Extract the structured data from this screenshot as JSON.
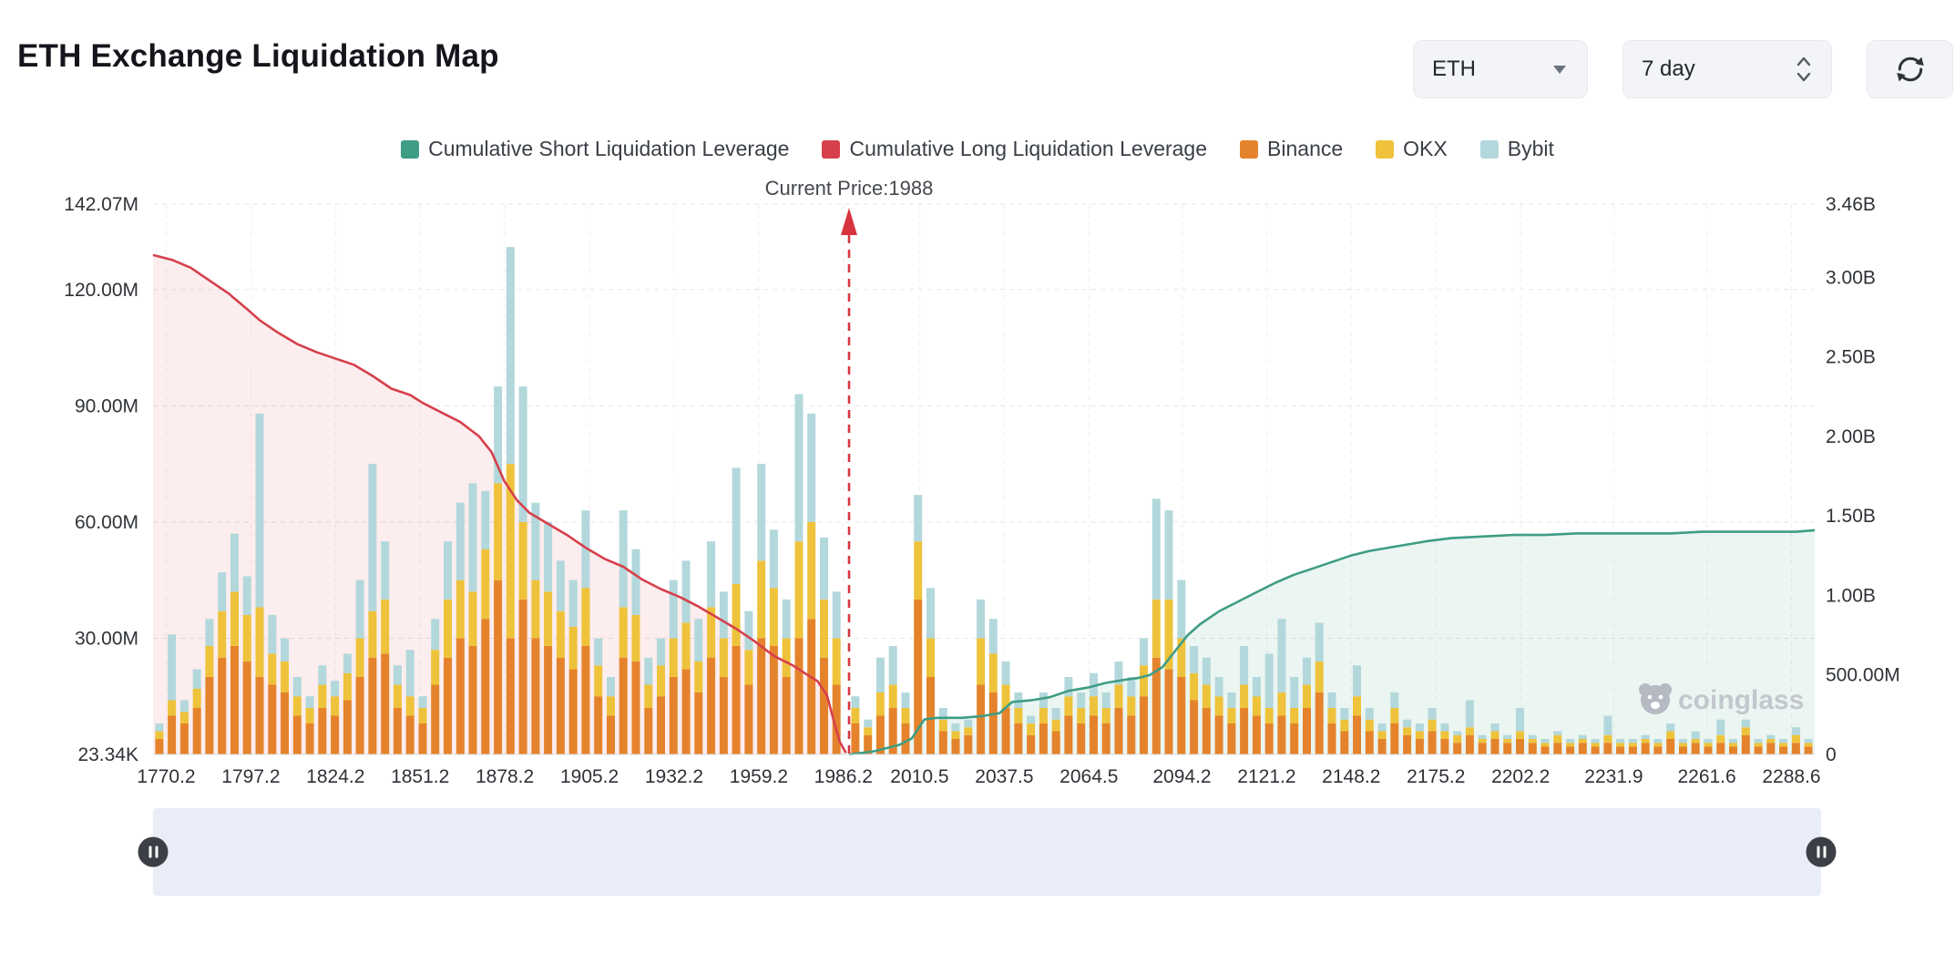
{
  "header": {
    "title": "ETH Exchange Liquidation Map",
    "symbol_select": {
      "value": "ETH"
    },
    "range_select": {
      "value": "7 day"
    }
  },
  "legend": [
    {
      "name": "short",
      "label": "Cumulative Short Liquidation Leverage",
      "color": "#3e9d84"
    },
    {
      "name": "long",
      "label": "Cumulative Long Liquidation Leverage",
      "color": "#d6404b"
    },
    {
      "name": "binance",
      "label": "Binance",
      "color": "#e5832c"
    },
    {
      "name": "okx",
      "label": "OKX",
      "color": "#eec33b"
    },
    {
      "name": "bybit",
      "label": "Bybit",
      "color": "#b3d8dc"
    }
  ],
  "watermark": "coinglass",
  "chart_data": {
    "type": "bar+line",
    "title": "ETH Exchange Liquidation Map",
    "current_price_annotation": {
      "label": "Current Price:1988",
      "price": 1988
    },
    "x_domain": [
      1766,
      2296
    ],
    "x_ticks": [
      1770.2,
      1797.2,
      1824.2,
      1851.2,
      1878.2,
      1905.2,
      1932.2,
      1959.2,
      1986.2,
      2010.5,
      2037.5,
      2064.5,
      2094.2,
      2121.2,
      2148.2,
      2175.2,
      2202.2,
      2231.9,
      2261.6,
      2288.6
    ],
    "left_axis": {
      "unit": "M",
      "max": 142.07,
      "ticks": [
        {
          "label": "142.07M",
          "value": 142.07
        },
        {
          "label": "120.00M",
          "value": 120
        },
        {
          "label": "90.00M",
          "value": 90
        },
        {
          "label": "60.00M",
          "value": 60
        },
        {
          "label": "30.00M",
          "value": 30
        },
        {
          "label": "23.34K",
          "value": 0.02334
        }
      ]
    },
    "right_axis": {
      "unit": "B",
      "max": 3.46,
      "ticks": [
        {
          "label": "3.46B",
          "value": 3.46
        },
        {
          "label": "3.00B",
          "value": 3
        },
        {
          "label": "2.50B",
          "value": 2.5
        },
        {
          "label": "2.00B",
          "value": 2
        },
        {
          "label": "1.50B",
          "value": 1.5
        },
        {
          "label": "1.00B",
          "value": 1
        },
        {
          "label": "500.00M",
          "value": 0.5
        },
        {
          "label": "0",
          "value": 0
        }
      ]
    },
    "bar_series_order": [
      "Binance",
      "OKX",
      "Bybit"
    ],
    "bar_colors": {
      "Binance": "#e5832c",
      "OKX": "#eec33b",
      "Bybit": "#b3d8dc"
    },
    "bars_unit": "M",
    "bars": [
      [
        1768,
        4,
        2,
        2
      ],
      [
        1772,
        10,
        4,
        17
      ],
      [
        1776,
        8,
        3,
        3
      ],
      [
        1780,
        12,
        5,
        5
      ],
      [
        1784,
        20,
        8,
        7
      ],
      [
        1788,
        25,
        12,
        10
      ],
      [
        1792,
        28,
        14,
        15
      ],
      [
        1796,
        24,
        12,
        10
      ],
      [
        1800,
        20,
        18,
        50
      ],
      [
        1804,
        18,
        8,
        10
      ],
      [
        1808,
        16,
        8,
        6
      ],
      [
        1812,
        10,
        5,
        5
      ],
      [
        1816,
        8,
        4,
        3
      ],
      [
        1820,
        12,
        6,
        5
      ],
      [
        1824,
        10,
        5,
        4
      ],
      [
        1828,
        14,
        7,
        5
      ],
      [
        1832,
        20,
        10,
        15
      ],
      [
        1836,
        25,
        12,
        38
      ],
      [
        1840,
        26,
        14,
        15
      ],
      [
        1844,
        12,
        6,
        5
      ],
      [
        1848,
        10,
        5,
        12
      ],
      [
        1852,
        8,
        4,
        3
      ],
      [
        1856,
        18,
        9,
        8
      ],
      [
        1860,
        25,
        15,
        15
      ],
      [
        1864,
        30,
        15,
        20
      ],
      [
        1868,
        28,
        14,
        28
      ],
      [
        1872,
        35,
        18,
        15
      ],
      [
        1876,
        45,
        25,
        25
      ],
      [
        1880,
        30,
        45,
        56
      ],
      [
        1884,
        40,
        20,
        35
      ],
      [
        1888,
        30,
        15,
        20
      ],
      [
        1892,
        28,
        14,
        18
      ],
      [
        1896,
        25,
        12,
        13
      ],
      [
        1900,
        22,
        11,
        12
      ],
      [
        1904,
        28,
        15,
        20
      ],
      [
        1908,
        15,
        8,
        7
      ],
      [
        1912,
        10,
        5,
        5
      ],
      [
        1916,
        25,
        13,
        25
      ],
      [
        1920,
        24,
        12,
        17
      ],
      [
        1924,
        12,
        6,
        7
      ],
      [
        1928,
        15,
        8,
        7
      ],
      [
        1932,
        20,
        10,
        15
      ],
      [
        1936,
        22,
        12,
        16
      ],
      [
        1940,
        16,
        8,
        11
      ],
      [
        1944,
        25,
        13,
        17
      ],
      [
        1948,
        20,
        10,
        12
      ],
      [
        1952,
        28,
        16,
        30
      ],
      [
        1956,
        18,
        9,
        10
      ],
      [
        1960,
        30,
        20,
        25
      ],
      [
        1964,
        28,
        15,
        15
      ],
      [
        1968,
        20,
        10,
        10
      ],
      [
        1972,
        30,
        25,
        38
      ],
      [
        1976,
        35,
        25,
        28
      ],
      [
        1980,
        25,
        15,
        16
      ],
      [
        1984,
        18,
        12,
        12
      ],
      [
        1990,
        8,
        4,
        3
      ],
      [
        1994,
        5,
        2,
        2
      ],
      [
        1998,
        10,
        6,
        9
      ],
      [
        2002,
        12,
        6,
        10
      ],
      [
        2006,
        8,
        4,
        4
      ],
      [
        2010,
        40,
        15,
        12
      ],
      [
        2014,
        20,
        10,
        13
      ],
      [
        2018,
        6,
        3,
        3
      ],
      [
        2022,
        4,
        2,
        2
      ],
      [
        2026,
        5,
        2,
        2
      ],
      [
        2030,
        18,
        12,
        10
      ],
      [
        2034,
        16,
        10,
        9
      ],
      [
        2038,
        12,
        6,
        6
      ],
      [
        2042,
        8,
        4,
        4
      ],
      [
        2046,
        5,
        3,
        2
      ],
      [
        2050,
        8,
        4,
        4
      ],
      [
        2054,
        6,
        3,
        3
      ],
      [
        2058,
        10,
        5,
        5
      ],
      [
        2062,
        8,
        4,
        4
      ],
      [
        2066,
        10,
        5,
        6
      ],
      [
        2070,
        8,
        4,
        4
      ],
      [
        2074,
        12,
        6,
        6
      ],
      [
        2078,
        10,
        5,
        5
      ],
      [
        2082,
        15,
        8,
        7
      ],
      [
        2086,
        25,
        15,
        26
      ],
      [
        2090,
        22,
        18,
        23
      ],
      [
        2094,
        20,
        10,
        15
      ],
      [
        2098,
        14,
        7,
        7
      ],
      [
        2102,
        12,
        6,
        7
      ],
      [
        2106,
        10,
        5,
        5
      ],
      [
        2110,
        8,
        4,
        4
      ],
      [
        2114,
        12,
        6,
        10
      ],
      [
        2118,
        10,
        5,
        5
      ],
      [
        2122,
        8,
        4,
        14
      ],
      [
        2126,
        10,
        6,
        19
      ],
      [
        2130,
        8,
        4,
        8
      ],
      [
        2134,
        12,
        6,
        7
      ],
      [
        2138,
        16,
        8,
        10
      ],
      [
        2142,
        8,
        4,
        4
      ],
      [
        2146,
        6,
        3,
        3
      ],
      [
        2150,
        10,
        5,
        8
      ],
      [
        2154,
        6,
        3,
        3
      ],
      [
        2158,
        4,
        2,
        2
      ],
      [
        2162,
        8,
        4,
        4
      ],
      [
        2166,
        5,
        2,
        2
      ],
      [
        2170,
        4,
        2,
        2
      ],
      [
        2174,
        6,
        3,
        3
      ],
      [
        2178,
        4,
        2,
        2
      ],
      [
        2182,
        3,
        2,
        1
      ],
      [
        2186,
        5,
        2,
        7
      ],
      [
        2190,
        3,
        1,
        1
      ],
      [
        2194,
        4,
        2,
        2
      ],
      [
        2198,
        3,
        1,
        1
      ],
      [
        2202,
        4,
        2,
        6
      ],
      [
        2206,
        3,
        1,
        1
      ],
      [
        2210,
        2,
        1,
        1
      ],
      [
        2214,
        3,
        2,
        1
      ],
      [
        2218,
        2,
        1,
        1
      ],
      [
        2222,
        3,
        1,
        1
      ],
      [
        2226,
        2,
        1,
        1
      ],
      [
        2230,
        3,
        2,
        5
      ],
      [
        2234,
        2,
        1,
        1
      ],
      [
        2238,
        2,
        1,
        1
      ],
      [
        2242,
        3,
        1,
        1
      ],
      [
        2246,
        2,
        1,
        1
      ],
      [
        2250,
        4,
        2,
        2
      ],
      [
        2254,
        2,
        1,
        1
      ],
      [
        2258,
        3,
        1,
        2
      ],
      [
        2262,
        2,
        1,
        1
      ],
      [
        2266,
        3,
        2,
        4
      ],
      [
        2270,
        2,
        1,
        1
      ],
      [
        2274,
        5,
        2,
        2
      ],
      [
        2278,
        2,
        1,
        1
      ],
      [
        2282,
        3,
        1,
        1
      ],
      [
        2286,
        2,
        1,
        1
      ],
      [
        2290,
        3,
        2,
        2
      ],
      [
        2294,
        2,
        1,
        1
      ]
    ],
    "lines": [
      {
        "name": "Cumulative Long Liquidation Leverage",
        "axis": "right",
        "unit": "B",
        "color": "#d6404b",
        "area": "rgba(222,77,87,0.10)",
        "points": [
          [
            1766,
            3.14
          ],
          [
            1772,
            3.11
          ],
          [
            1778,
            3.06
          ],
          [
            1784,
            2.98
          ],
          [
            1790,
            2.9
          ],
          [
            1796,
            2.8
          ],
          [
            1800,
            2.73
          ],
          [
            1806,
            2.65
          ],
          [
            1812,
            2.58
          ],
          [
            1818,
            2.53
          ],
          [
            1824,
            2.49
          ],
          [
            1830,
            2.45
          ],
          [
            1836,
            2.38
          ],
          [
            1842,
            2.3
          ],
          [
            1848,
            2.26
          ],
          [
            1852,
            2.21
          ],
          [
            1858,
            2.15
          ],
          [
            1864,
            2.09
          ],
          [
            1870,
            2.0
          ],
          [
            1874,
            1.9
          ],
          [
            1878,
            1.72
          ],
          [
            1882,
            1.6
          ],
          [
            1886,
            1.52
          ],
          [
            1892,
            1.45
          ],
          [
            1898,
            1.38
          ],
          [
            1904,
            1.3
          ],
          [
            1910,
            1.23
          ],
          [
            1916,
            1.18
          ],
          [
            1922,
            1.1
          ],
          [
            1928,
            1.04
          ],
          [
            1934,
            0.99
          ],
          [
            1940,
            0.93
          ],
          [
            1946,
            0.86
          ],
          [
            1952,
            0.79
          ],
          [
            1958,
            0.71
          ],
          [
            1964,
            0.62
          ],
          [
            1970,
            0.56
          ],
          [
            1974,
            0.51
          ],
          [
            1978,
            0.46
          ],
          [
            1981,
            0.37
          ],
          [
            1983,
            0.22
          ],
          [
            1985,
            0.08
          ],
          [
            1987,
            0.01
          ]
        ]
      },
      {
        "name": "Cumulative Short Liquidation Leverage",
        "axis": "right",
        "unit": "B",
        "color": "#3e9d84",
        "area": "rgba(62,157,132,0.10)",
        "points": [
          [
            1988,
            0.0
          ],
          [
            1992,
            0.01
          ],
          [
            1996,
            0.02
          ],
          [
            2000,
            0.04
          ],
          [
            2004,
            0.06
          ],
          [
            2008,
            0.1
          ],
          [
            2012,
            0.22
          ],
          [
            2016,
            0.23
          ],
          [
            2024,
            0.23
          ],
          [
            2030,
            0.24
          ],
          [
            2036,
            0.26
          ],
          [
            2040,
            0.33
          ],
          [
            2046,
            0.34
          ],
          [
            2052,
            0.36
          ],
          [
            2058,
            0.4
          ],
          [
            2064,
            0.42
          ],
          [
            2070,
            0.45
          ],
          [
            2076,
            0.47
          ],
          [
            2080,
            0.48
          ],
          [
            2084,
            0.5
          ],
          [
            2088,
            0.55
          ],
          [
            2092,
            0.65
          ],
          [
            2096,
            0.75
          ],
          [
            2100,
            0.82
          ],
          [
            2106,
            0.9
          ],
          [
            2112,
            0.96
          ],
          [
            2118,
            1.02
          ],
          [
            2124,
            1.08
          ],
          [
            2130,
            1.13
          ],
          [
            2136,
            1.17
          ],
          [
            2142,
            1.21
          ],
          [
            2148,
            1.25
          ],
          [
            2154,
            1.28
          ],
          [
            2160,
            1.3
          ],
          [
            2166,
            1.32
          ],
          [
            2172,
            1.34
          ],
          [
            2180,
            1.36
          ],
          [
            2190,
            1.37
          ],
          [
            2200,
            1.38
          ],
          [
            2210,
            1.38
          ],
          [
            2220,
            1.39
          ],
          [
            2230,
            1.39
          ],
          [
            2240,
            1.39
          ],
          [
            2250,
            1.39
          ],
          [
            2260,
            1.4
          ],
          [
            2270,
            1.4
          ],
          [
            2280,
            1.4
          ],
          [
            2290,
            1.4
          ],
          [
            2296,
            1.41
          ]
        ]
      }
    ]
  }
}
